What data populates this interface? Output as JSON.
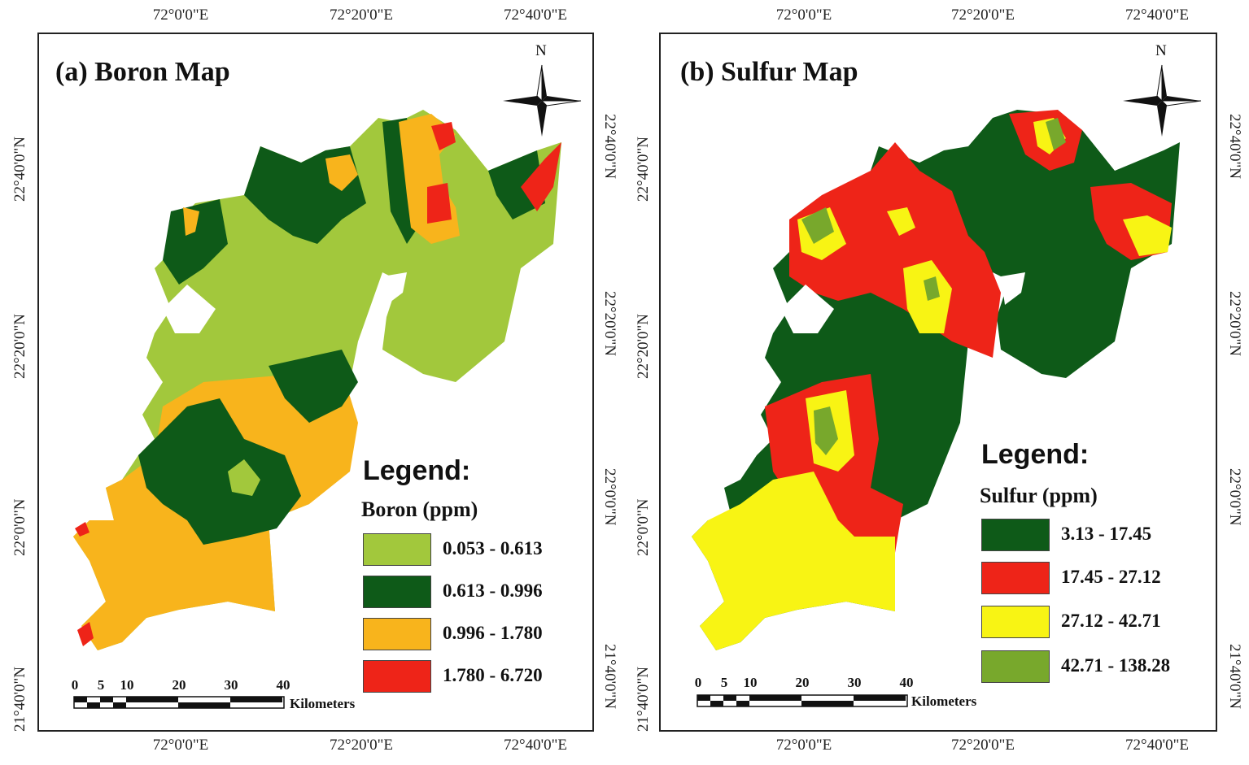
{
  "panels": [
    {
      "title": "(a) Boron Map",
      "legend_heading": "Legend:",
      "legend_subtitle": "Boron (ppm)",
      "legend": [
        {
          "label": "0.053 - 0.613",
          "color": "#a2c83c"
        },
        {
          "label": "0.613 - 0.996",
          "color": "#0e5a18"
        },
        {
          "label": "0.996 - 1.780",
          "color": "#f8b41c"
        },
        {
          "label": "1.780 - 6.720",
          "color": "#ee2418"
        }
      ]
    },
    {
      "title": "(b) Sulfur Map",
      "legend_heading": "Legend:",
      "legend_subtitle": "Sulfur (ppm)",
      "legend": [
        {
          "label": "3.13 - 17.45",
          "color": "#0e5a18"
        },
        {
          "label": "17.45 - 27.12",
          "color": "#ee2418"
        },
        {
          "label": "27.12 - 42.71",
          "color": "#f8f414"
        },
        {
          "label": "42.71 - 138.28",
          "color": "#78a82c"
        }
      ]
    }
  ],
  "longitude_labels": [
    "72°0'0\"E",
    "72°20'0\"E",
    "72°40'0\"E"
  ],
  "latitude_labels": [
    "22°40'0\"N",
    "22°20'0\"N",
    "22°0'0\"N",
    "21°40'0\"N"
  ],
  "scale_bar": {
    "ticks": [
      "0",
      "5",
      "10",
      "20",
      "30",
      "40"
    ],
    "unit": "Kilometers"
  },
  "north_label": "N"
}
